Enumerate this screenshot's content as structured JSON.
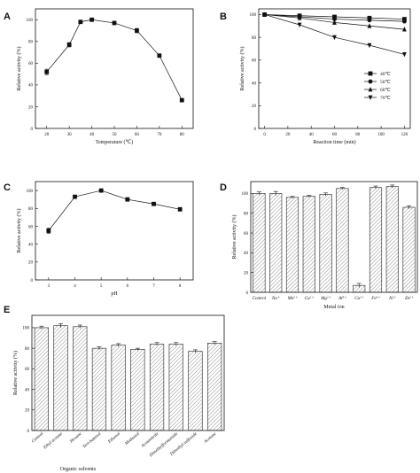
{
  "chart_data": [
    {
      "panel": "A",
      "type": "line",
      "xlabel": "Temperature (℃)",
      "ylabel": "Relative activity (%)",
      "x": [
        20,
        30,
        35,
        40,
        50,
        60,
        70,
        80
      ],
      "values": [
        52,
        77,
        98,
        100,
        97,
        90,
        67,
        26
      ],
      "errors": [
        2.5,
        2,
        1.5,
        1.5,
        1.5,
        2,
        1,
        1.5
      ],
      "xlim": [
        15,
        85
      ],
      "ylim": [
        0,
        110
      ],
      "xticks": [
        "20",
        "30",
        "40",
        "50",
        "60",
        "70",
        "80"
      ],
      "yticks": [
        "0",
        "20",
        "40",
        "60",
        "80",
        "100"
      ]
    },
    {
      "panel": "B",
      "type": "line",
      "xlabel": "Reaction time (min)",
      "ylabel": "Relative activity (%)",
      "x": [
        0,
        30,
        60,
        90,
        120
      ],
      "series": [
        {
          "name": "40℃",
          "marker": "square",
          "values": [
            100,
            99,
            98,
            97,
            96
          ]
        },
        {
          "name": "50℃",
          "marker": "circle",
          "values": [
            100,
            98,
            96,
            95,
            94
          ]
        },
        {
          "name": "60℃",
          "marker": "triangle-up",
          "values": [
            100,
            97,
            93,
            90,
            87
          ]
        },
        {
          "name": "70℃",
          "marker": "triangle-down",
          "values": [
            100,
            91,
            80,
            73,
            65
          ]
        }
      ],
      "xlim": [
        -5,
        125
      ],
      "ylim": [
        0,
        105
      ],
      "legend": "bottom-right",
      "xticks": [
        "0",
        "20",
        "40",
        "60",
        "80",
        "100",
        "120"
      ],
      "yticks": [
        "0",
        "20",
        "40",
        "60",
        "80",
        "100"
      ]
    },
    {
      "panel": "C",
      "type": "line",
      "xlabel": "pH",
      "ylabel": "Relative activity (%)",
      "x": [
        3,
        4,
        5,
        6,
        7,
        8
      ],
      "values": [
        55,
        93,
        100,
        90,
        85,
        79
      ],
      "errors": [
        3,
        1.5,
        1.5,
        2,
        1.5,
        2
      ],
      "xlim": [
        2.5,
        8.5
      ],
      "ylim": [
        0,
        110
      ],
      "xticks": [
        "3",
        "4",
        "5",
        "6",
        "7",
        "8"
      ],
      "yticks": [
        "0",
        "20",
        "40",
        "60",
        "80",
        "100"
      ]
    },
    {
      "panel": "D",
      "type": "bar",
      "xlabel": "Metal ion",
      "ylabel": "Relative activity (%)",
      "categories": [
        "Control",
        "Na⁺",
        "Mn²⁺",
        "Cu²⁺",
        "Mg²⁺",
        "Al³⁺",
        "Cu²⁺",
        "Fe³⁺",
        "Ni⁺",
        "Zn²⁺"
      ],
      "values": [
        100,
        100,
        96,
        97,
        99,
        105,
        7,
        106,
        107,
        86
      ],
      "errors": [
        1.5,
        2,
        1,
        1,
        1.5,
        1,
        2,
        1.5,
        1.5,
        1.5
      ],
      "ylim": [
        0,
        112
      ],
      "yticks": [
        "0",
        "20",
        "40",
        "60",
        "80",
        "100"
      ]
    },
    {
      "panel": "E",
      "type": "bar",
      "xlabel": "Organic solvents",
      "ylabel": "Relative activity (%)",
      "categories": [
        "Control",
        "Ethyl acetate",
        "Hexane",
        "Tert-butanol",
        "Ethanol",
        "Methanol",
        "Acetonitrile",
        "Dimethylformamide",
        "Dimethyl sulfoxide",
        "Acetone"
      ],
      "values": [
        100,
        102,
        101,
        80,
        83,
        79,
        84,
        84,
        77,
        85
      ],
      "errors": [
        1.5,
        2,
        1.5,
        1.5,
        1.5,
        1,
        1.5,
        1.5,
        1.5,
        1.5
      ],
      "ylim": [
        0,
        112
      ],
      "yticks": [
        "0",
        "20",
        "40",
        "60",
        "80",
        "100"
      ]
    }
  ]
}
